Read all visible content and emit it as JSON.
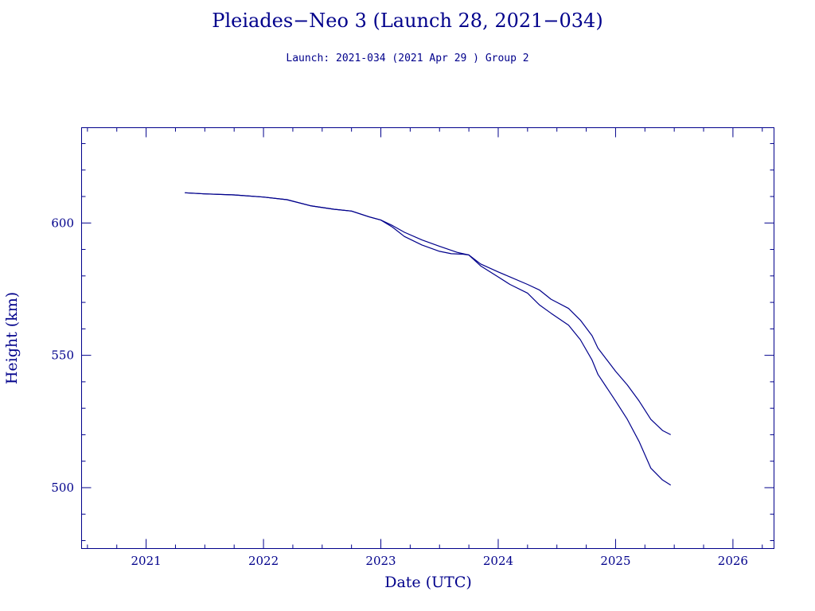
{
  "chart_data": {
    "type": "line",
    "title": "Pleiades−Neo 3 (Launch 28, 2021−034)",
    "subtitle": "Launch: 2021-034  (2021 Apr 29 )  Group 2",
    "xlabel": "Date (UTC)",
    "ylabel": "Height (km)",
    "xlim": [
      2020.45,
      2026.35
    ],
    "ylim": [
      477,
      636
    ],
    "x_ticks": [
      "2021",
      "2022",
      "2023",
      "2024",
      "2025",
      "2026"
    ],
    "y_ticks": [
      "500",
      "550",
      "600"
    ],
    "grid": false,
    "color": "#00008b",
    "series": [
      {
        "x": [
          2021.33,
          2021.5,
          2021.75,
          2022.0,
          2022.2,
          2022.4,
          2022.6,
          2022.75,
          2022.9,
          2023.0,
          2023.1,
          2023.2,
          2023.35,
          2023.5,
          2023.65,
          2023.75,
          2023.85,
          2024.0,
          2024.1,
          2024.25,
          2024.35,
          2024.45,
          2024.6,
          2024.7,
          2024.8,
          2024.85,
          2025.0,
          2025.1,
          2025.2,
          2025.3,
          2025.4,
          2025.47
        ],
        "y": [
          611.4,
          611,
          610.6,
          609.8,
          608.8,
          606.5,
          605.2,
          604.5,
          602.3,
          601.1,
          599,
          596.5,
          593.6,
          591.2,
          588.9,
          587.9,
          584.5,
          581.5,
          579.6,
          576.8,
          574.7,
          571.2,
          567.7,
          563.3,
          557.4,
          552.7,
          544,
          538.8,
          532.8,
          525.8,
          521.6,
          520
        ]
      },
      {
        "x": [
          2021.33,
          2021.5,
          2021.75,
          2022.0,
          2022.2,
          2022.4,
          2022.6,
          2022.75,
          2022.9,
          2023.0,
          2023.1,
          2023.2,
          2023.35,
          2023.5,
          2023.6,
          2023.7,
          2023.75,
          2023.85,
          2024.0,
          2024.1,
          2024.25,
          2024.35,
          2024.45,
          2024.6,
          2024.7,
          2024.8,
          2024.85,
          2025.0,
          2025.1,
          2025.2,
          2025.3,
          2025.4,
          2025.47
        ],
        "y": [
          611.4,
          611,
          610.6,
          609.8,
          608.8,
          606.5,
          605.2,
          604.5,
          602.3,
          601.1,
          598.4,
          594.9,
          591.7,
          589.3,
          588.4,
          588.2,
          587.9,
          583.8,
          579.6,
          576.8,
          573.5,
          569.1,
          565.9,
          561.4,
          555.9,
          548.2,
          542.8,
          532.8,
          525.8,
          517.5,
          507.4,
          502.9,
          501
        ]
      }
    ]
  }
}
